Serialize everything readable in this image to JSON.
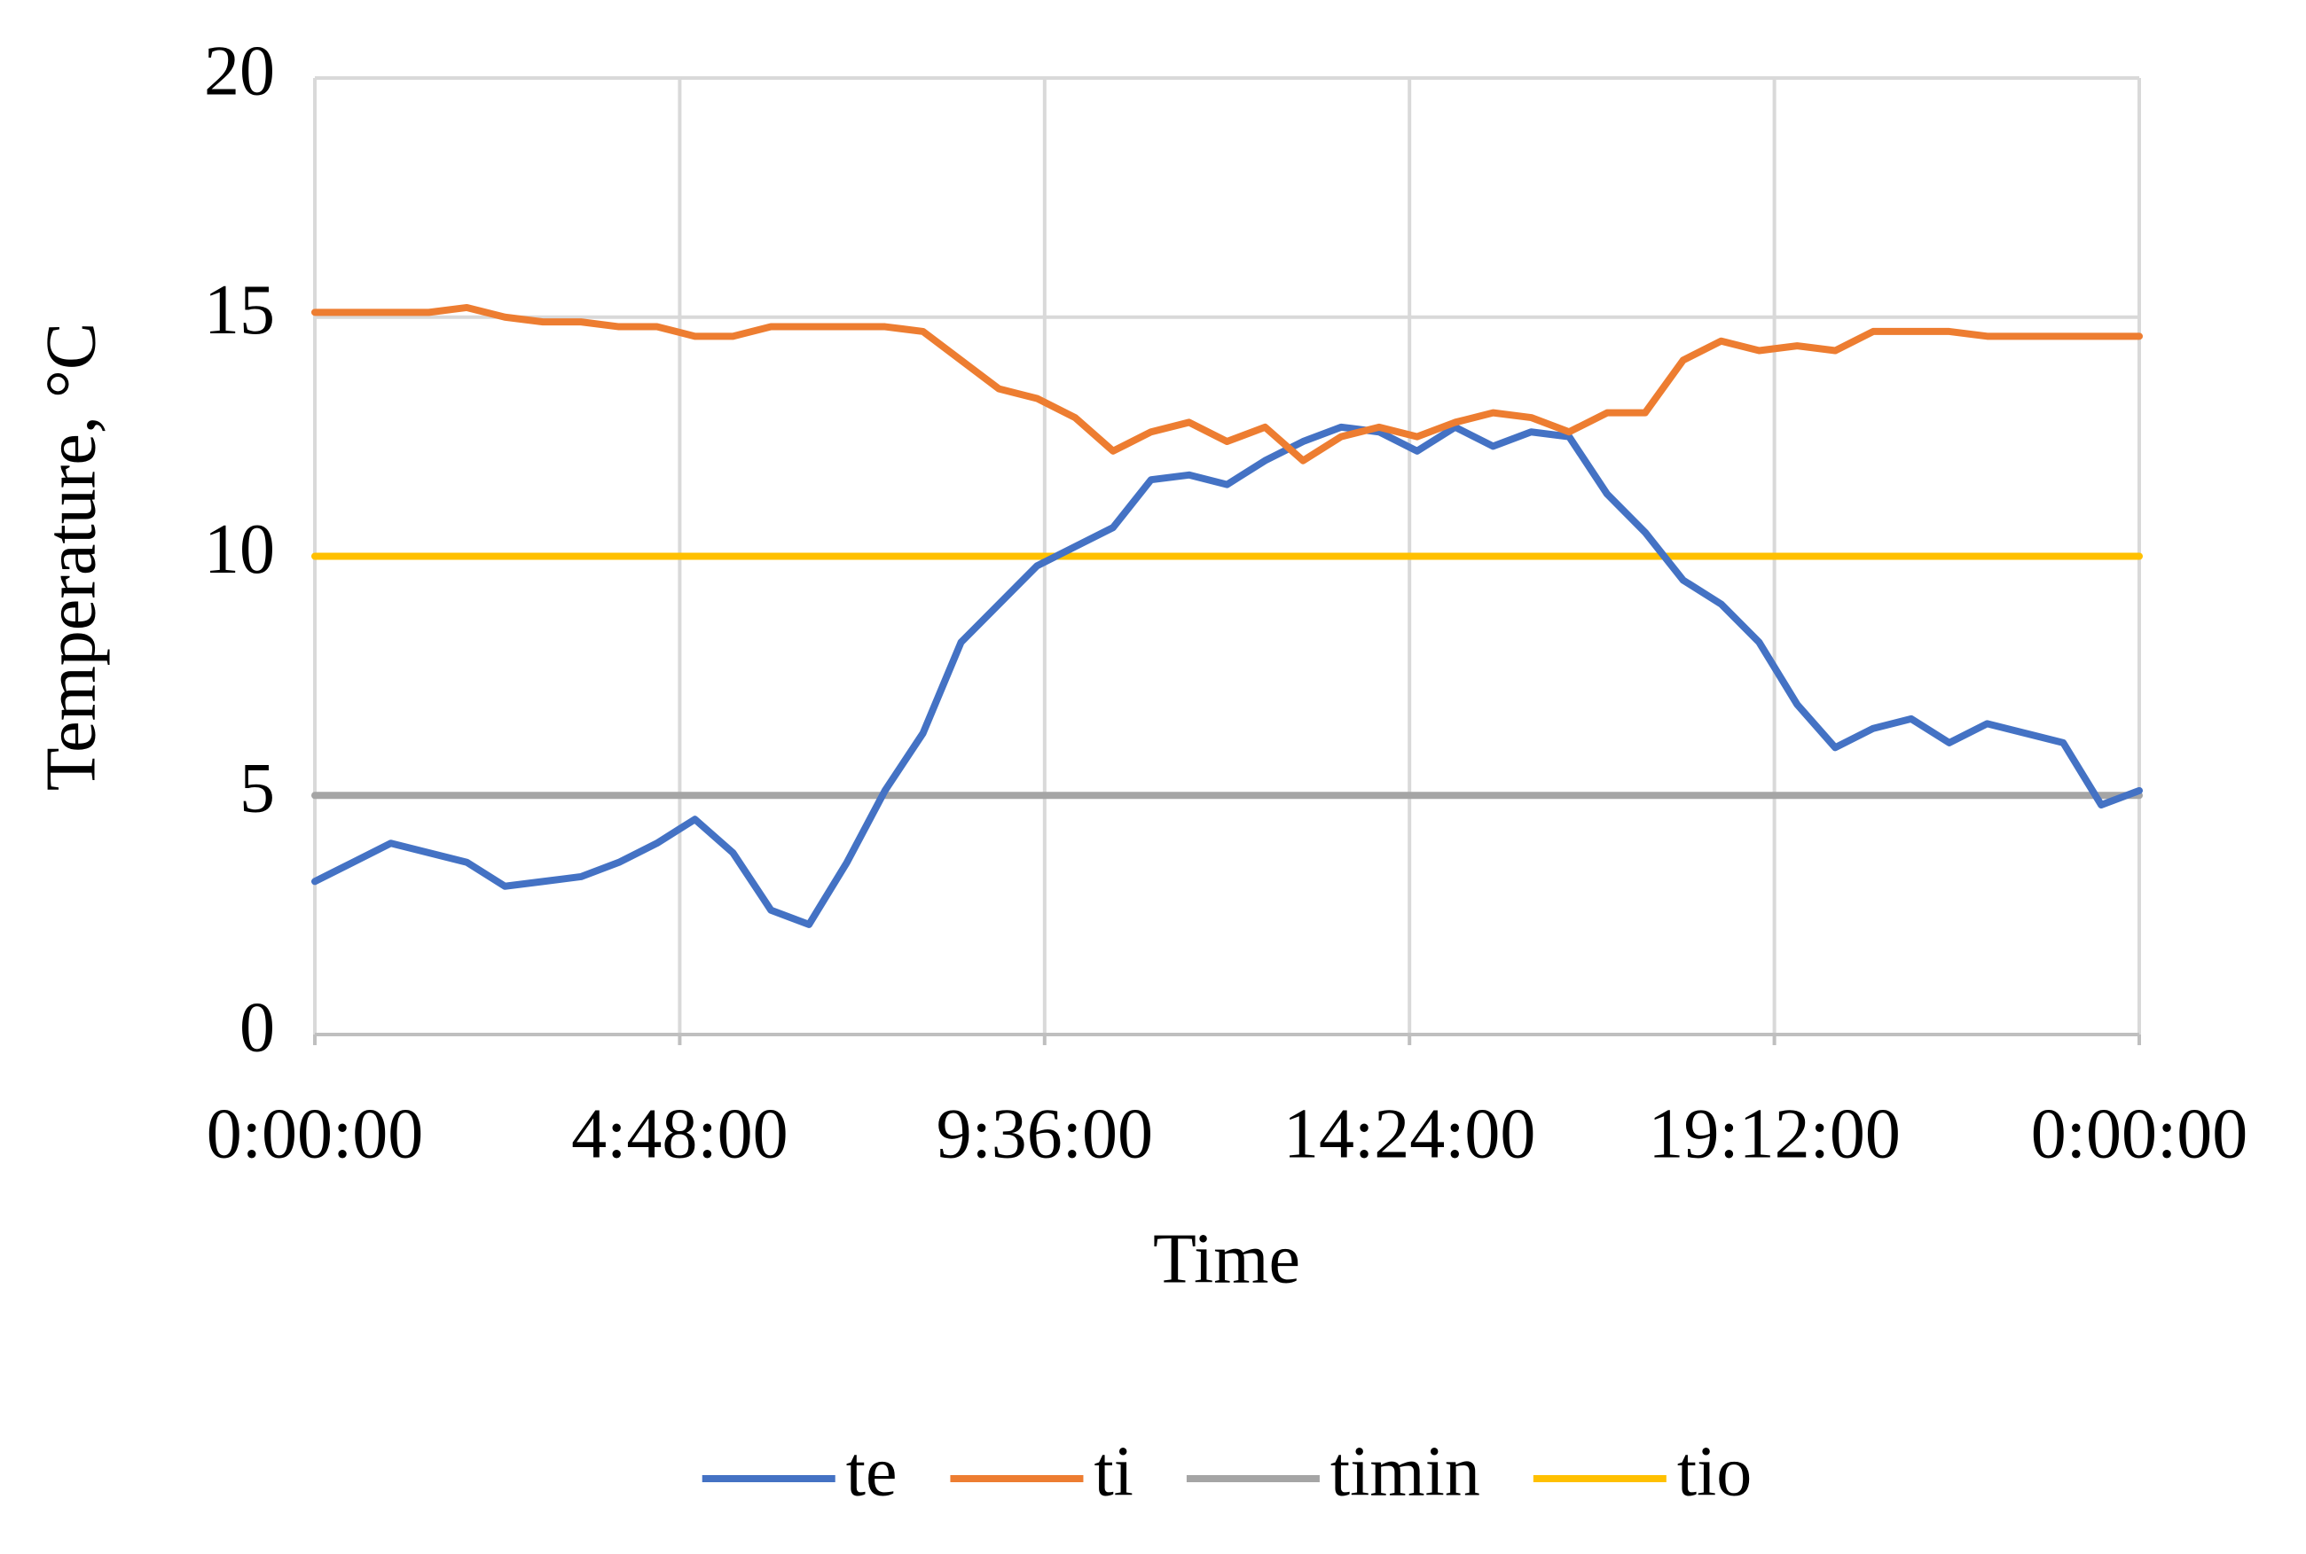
{
  "chart_data": {
    "type": "line",
    "x_label": "Time",
    "y_label": "Temperature, °C",
    "x": [
      0,
      0.5,
      1,
      1.5,
      2,
      2.5,
      3,
      3.5,
      4,
      4.5,
      5,
      5.5,
      6,
      6.5,
      7,
      7.5,
      8,
      8.5,
      9,
      9.5,
      10,
      10.5,
      11,
      11.5,
      12,
      12.5,
      13,
      13.5,
      14,
      14.5,
      15,
      15.5,
      16,
      16.5,
      17,
      17.5,
      18,
      18.5,
      19,
      19.5,
      20,
      20.5,
      21,
      21.5,
      22,
      22.5,
      23,
      23.5,
      24
    ],
    "series": [
      {
        "name": "te",
        "color": "#4472c4",
        "values": [
          3.2,
          3.6,
          4.0,
          3.8,
          3.6,
          3.1,
          3.2,
          3.3,
          3.6,
          4.0,
          4.5,
          3.8,
          2.6,
          2.3,
          3.6,
          5.1,
          6.3,
          8.2,
          9.0,
          9.8,
          10.2,
          10.6,
          11.6,
          11.7,
          11.5,
          12.0,
          12.4,
          12.7,
          12.6,
          12.2,
          12.7,
          12.3,
          12.6,
          12.5,
          11.3,
          10.5,
          9.5,
          9.0,
          8.2,
          6.9,
          6.0,
          6.4,
          6.6,
          6.1,
          6.5,
          6.3,
          6.1,
          4.8,
          5.1
        ]
      },
      {
        "name": "ti",
        "color": "#ed7d31",
        "values": [
          15.1,
          15.1,
          15.1,
          15.1,
          15.2,
          15.0,
          14.9,
          14.9,
          14.8,
          14.8,
          14.6,
          14.6,
          14.8,
          14.8,
          14.8,
          14.8,
          14.7,
          14.1,
          13.5,
          13.3,
          12.9,
          12.2,
          12.6,
          12.8,
          12.4,
          12.7,
          12.0,
          12.5,
          12.7,
          12.5,
          12.8,
          13.0,
          12.9,
          12.6,
          13.0,
          13.0,
          14.1,
          14.5,
          14.3,
          14.4,
          14.3,
          14.7,
          14.7,
          14.7,
          14.6,
          14.6,
          14.6,
          14.6,
          14.6
        ]
      },
      {
        "name": "timin",
        "color": "#a5a5a5",
        "x": [
          0,
          24
        ],
        "values": [
          5,
          5
        ]
      },
      {
        "name": "tio",
        "color": "#ffc000",
        "x": [
          0,
          24
        ],
        "values": [
          10,
          10
        ]
      }
    ],
    "xlim": [
      0,
      24
    ],
    "xticks": [
      {
        "value": 0,
        "label": "0:00:00"
      },
      {
        "value": 4.8,
        "label": "4:48:00"
      },
      {
        "value": 9.6,
        "label": "9:36:00"
      },
      {
        "value": 14.4,
        "label": "14:24:00"
      },
      {
        "value": 19.2,
        "label": "19:12:00"
      },
      {
        "value": 24,
        "label": "0:00:00"
      }
    ],
    "ylim": [
      0,
      20
    ],
    "yticks": [
      0,
      5,
      10,
      15,
      20
    ],
    "grid": true,
    "legend": "bottom"
  }
}
